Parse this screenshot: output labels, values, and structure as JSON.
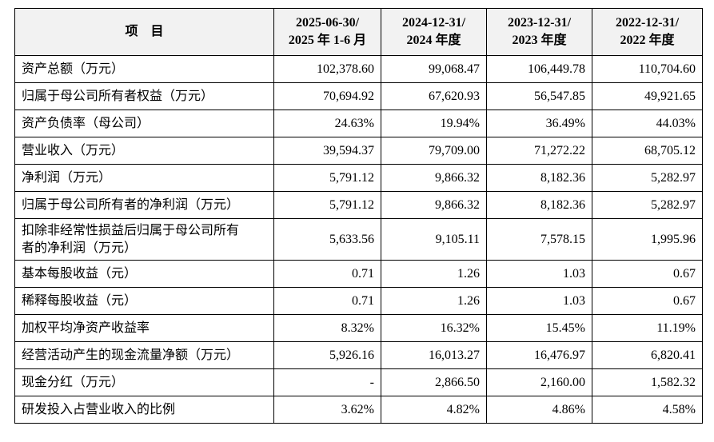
{
  "table": {
    "header": [
      [
        "项　目"
      ],
      [
        "2025-06-30/",
        "2025 年 1-6 月"
      ],
      [
        "2024-12-31/",
        "2024 年度"
      ],
      [
        "2023-12-31/",
        "2023 年度"
      ],
      [
        "2022-12-31/",
        "2022 年度"
      ]
    ],
    "rows": [
      [
        "资产总额（万元）",
        "102,378.60",
        "99,068.47",
        "106,449.78",
        "110,704.60"
      ],
      [
        "归属于母公司所有者权益（万元）",
        "70,694.92",
        "67,620.93",
        "56,547.85",
        "49,921.65"
      ],
      [
        "资产负债率（母公司）",
        "24.63%",
        "19.94%",
        "36.49%",
        "44.03%"
      ],
      [
        "营业收入（万元）",
        "39,594.37",
        "79,709.00",
        "71,272.22",
        "68,705.12"
      ],
      [
        "净利润（万元）",
        "5,791.12",
        "9,866.32",
        "8,182.36",
        "5,282.97"
      ],
      [
        "归属于母公司所有者的净利润（万元）",
        "5,791.12",
        "9,866.32",
        "8,182.36",
        "5,282.97"
      ],
      [
        "扣除非经常性损益后归属于母公司所有者的净利润（万元）",
        "5,633.56",
        "9,105.11",
        "7,578.15",
        "1,995.96"
      ],
      [
        "基本每股收益（元）",
        "0.71",
        "1.26",
        "1.03",
        "0.67"
      ],
      [
        "稀释每股收益（元）",
        "0.71",
        "1.26",
        "1.03",
        "0.67"
      ],
      [
        "加权平均净资产收益率",
        "8.32%",
        "16.32%",
        "15.45%",
        "11.19%"
      ],
      [
        "经营活动产生的现金流量净额（万元）",
        "5,926.16",
        "16,013.27",
        "16,476.97",
        "6,820.41"
      ],
      [
        "现金分红（万元）",
        "-",
        "2,866.50",
        "2,160.00",
        "1,582.32"
      ],
      [
        "研发投入占营业收入的比例",
        "3.62%",
        "4.82%",
        "4.86%",
        "4.58%"
      ]
    ]
  }
}
